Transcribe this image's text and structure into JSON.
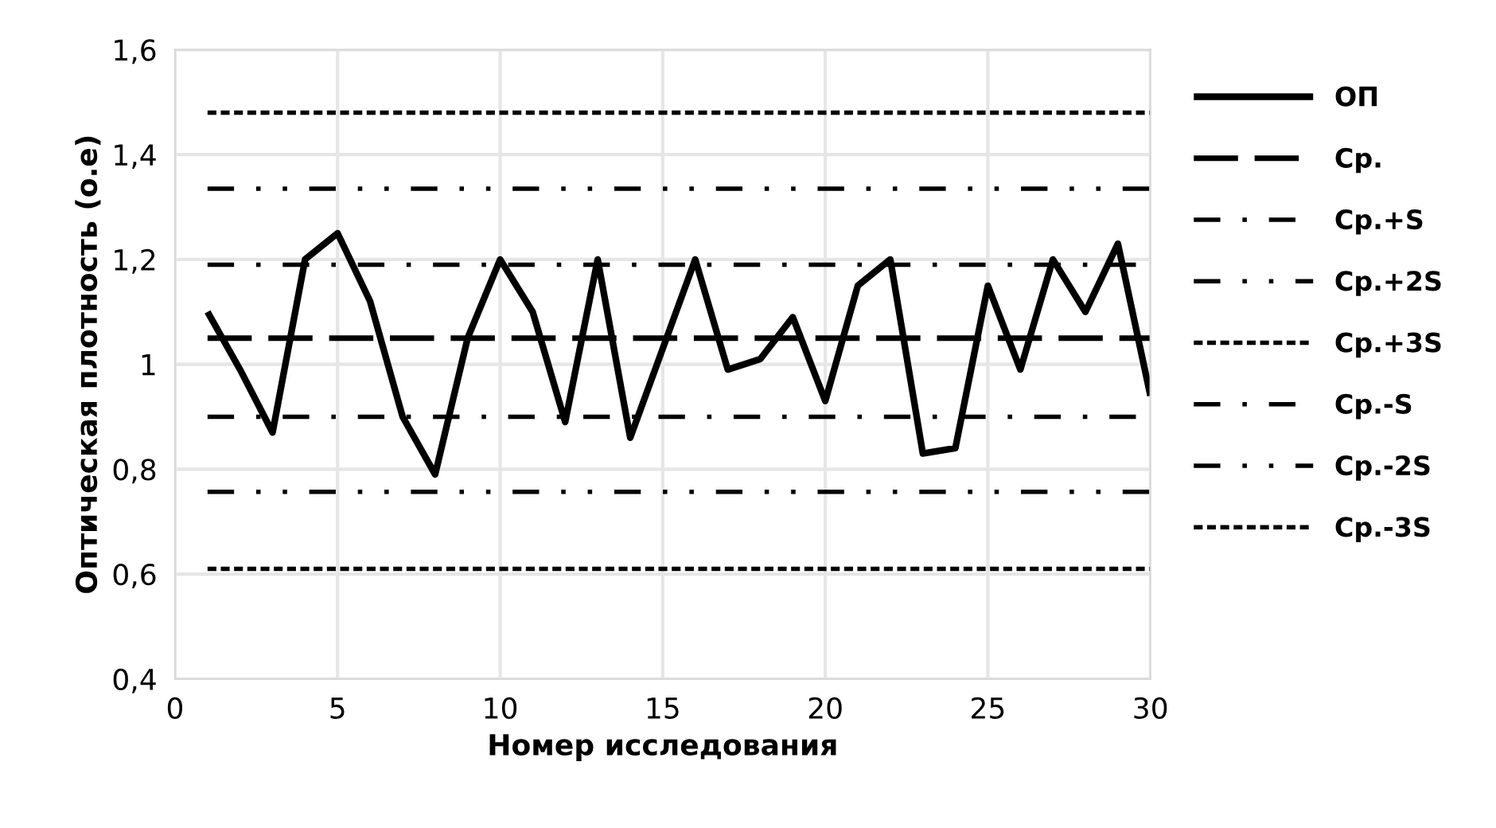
{
  "chart_data": {
    "type": "line",
    "xlabel": "Номер исследования",
    "ylabel": "Оптическая плотность (о.е)",
    "xlim": [
      0,
      30
    ],
    "xticks": [
      0,
      5,
      10,
      15,
      20,
      25,
      30
    ],
    "ylim": [
      0.4,
      1.6
    ],
    "yticks": [
      {
        "value": 0.4,
        "label": "0,4"
      },
      {
        "value": 0.6,
        "label": "0,6"
      },
      {
        "value": 0.8,
        "label": "0,8"
      },
      {
        "value": 1,
        "label": "1"
      },
      {
        "value": 1.2,
        "label": "1,2"
      },
      {
        "value": 1.4,
        "label": "1,4"
      },
      {
        "value": 1.6,
        "label": "1,6"
      }
    ],
    "grid": true,
    "legend": "right",
    "marker": "none",
    "series": [
      {
        "name": "ОП",
        "color": "#000000",
        "line_style": "solid",
        "x": [
          1,
          2,
          3,
          4,
          5,
          6,
          7,
          8,
          9,
          10,
          11,
          12,
          13,
          14,
          15,
          16,
          17,
          18,
          19,
          20,
          21,
          22,
          23,
          24,
          25,
          26,
          27,
          28,
          29,
          30
        ],
        "values": [
          1.1,
          0.99,
          0.87,
          1.2,
          1.25,
          1.12,
          0.9,
          0.79,
          1.05,
          1.2,
          1.1,
          0.89,
          1.2,
          0.86,
          1.03,
          1.2,
          0.99,
          1.01,
          1.09,
          0.93,
          1.15,
          1.2,
          0.83,
          0.84,
          1.15,
          0.99,
          1.2,
          1.1,
          1.23,
          0.94
        ]
      },
      {
        "name": "Ср.",
        "color": "#000000",
        "line_style": "longdash",
        "x": [
          1,
          30
        ],
        "values": [
          1.05,
          1.05
        ]
      },
      {
        "name": "Ср.+S",
        "color": "#000000",
        "line_style": "dashdot",
        "x": [
          1,
          30
        ],
        "values": [
          1.19,
          1.19
        ]
      },
      {
        "name": "Ср.+2S",
        "color": "#000000",
        "line_style": "dashdotdot",
        "x": [
          1,
          30
        ],
        "values": [
          1.335,
          1.335
        ]
      },
      {
        "name": "Ср.+3S",
        "color": "#000000",
        "line_style": "dashed",
        "x": [
          1,
          30
        ],
        "values": [
          1.48,
          1.48
        ]
      },
      {
        "name": "Ср.-S",
        "color": "#000000",
        "line_style": "dashdot",
        "x": [
          1,
          30
        ],
        "values": [
          0.9,
          0.9
        ]
      },
      {
        "name": "Ср.-2S",
        "color": "#000000",
        "line_style": "dashdotdot",
        "x": [
          1,
          30
        ],
        "values": [
          0.757,
          0.757
        ]
      },
      {
        "name": "Ср.-3S",
        "color": "#000000",
        "line_style": "dashed",
        "x": [
          1,
          30
        ],
        "values": [
          0.61,
          0.61
        ]
      }
    ]
  }
}
